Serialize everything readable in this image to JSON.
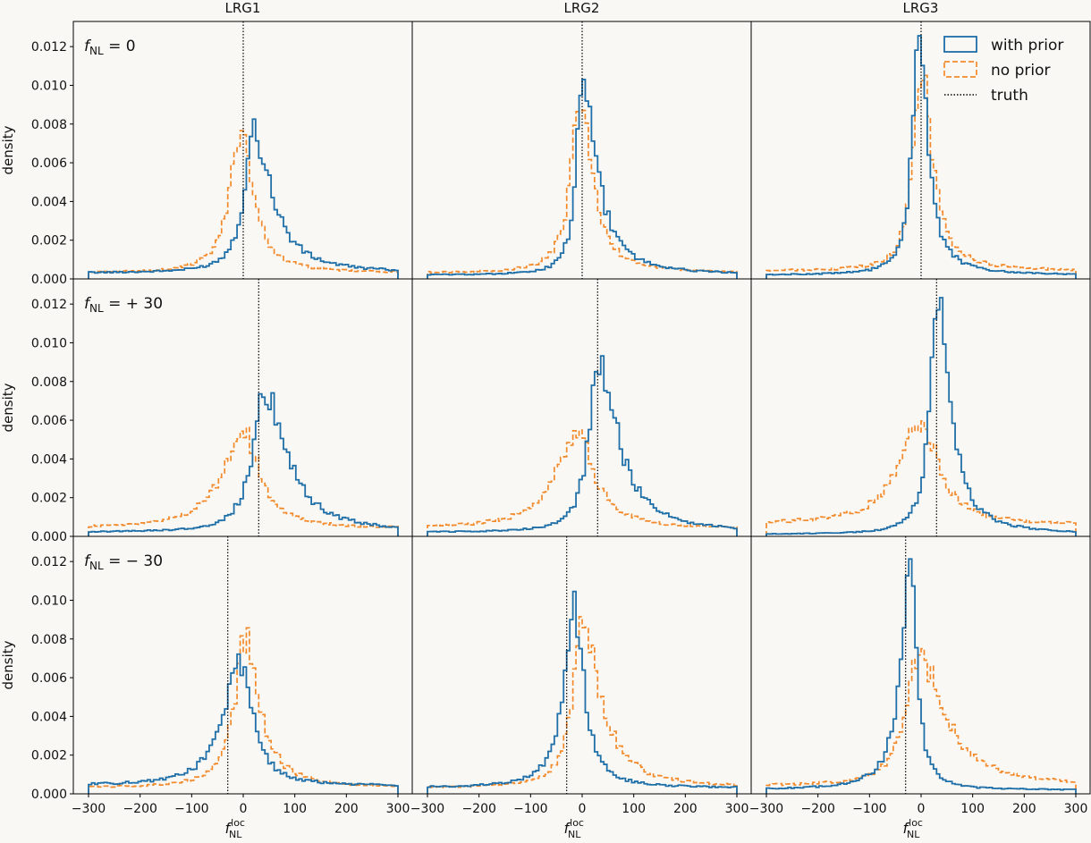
{
  "figure": {
    "columns": [
      "LRG1",
      "LRG2",
      "LRG3"
    ],
    "row_labels": [
      "f_NL = 0",
      "f_NL = +30",
      "f_NL = −30"
    ],
    "row_label_parts": [
      {
        "f": "f",
        "sub": "NL",
        "rest": " = 0"
      },
      {
        "f": "f",
        "sub": "NL",
        "rest": " = + 30"
      },
      {
        "f": "f",
        "sub": "NL",
        "rest": " = − 30"
      }
    ],
    "ylabel": "density",
    "xlabel": {
      "f": "f",
      "sub": "NL",
      "sup": "loc"
    },
    "legend": [
      "with prior",
      "no prior",
      "truth"
    ],
    "colors": {
      "with_prior": "#1f6fa8",
      "no_prior": "#f28a2b",
      "truth": "#000000",
      "background": "#faf8f4"
    },
    "xticks": [
      "−300",
      "−200",
      "−100",
      "0",
      "100",
      "200",
      "300"
    ],
    "yticks": [
      "0.000",
      "0.002",
      "0.004",
      "0.006",
      "0.008",
      "0.010",
      "0.012"
    ]
  },
  "chart_data": {
    "type": "histogram-grid",
    "xlim": [
      -300,
      300
    ],
    "ylim": [
      0,
      0.0133
    ],
    "bins": 100,
    "legend_position": "top-right",
    "grid": false,
    "panels": [
      {
        "row": 0,
        "col": 0,
        "truth": 0,
        "with_prior": {
          "peak": 20,
          "height": 0.0076,
          "left_width": 22,
          "right_width": 42,
          "tail": 0.0003
        },
        "no_prior": {
          "peak": -5,
          "height": 0.0079,
          "left_width": 24,
          "right_width": 28,
          "tail": 0.0003
        }
      },
      {
        "row": 0,
        "col": 1,
        "truth": 0,
        "with_prior": {
          "peak": 0,
          "height": 0.0099,
          "left_width": 14,
          "right_width": 34,
          "tail": 0.0002
        },
        "no_prior": {
          "peak": -5,
          "height": 0.0094,
          "left_width": 20,
          "right_width": 28,
          "tail": 0.0003
        }
      },
      {
        "row": 0,
        "col": 2,
        "truth": 0,
        "with_prior": {
          "peak": -5,
          "height": 0.0131,
          "left_width": 14,
          "right_width": 20,
          "tail": 0.0002
        },
        "no_prior": {
          "peak": 0,
          "height": 0.0107,
          "left_width": 18,
          "right_width": 26,
          "tail": 0.0004
        }
      },
      {
        "row": 1,
        "col": 0,
        "truth": 30,
        "with_prior": {
          "peak": 40,
          "height": 0.0074,
          "left_width": 26,
          "right_width": 52,
          "tail": 0.0002
        },
        "no_prior": {
          "peak": 0,
          "height": 0.0054,
          "left_width": 48,
          "right_width": 38,
          "tail": 0.0004
        }
      },
      {
        "row": 1,
        "col": 1,
        "truth": 30,
        "with_prior": {
          "peak": 30,
          "height": 0.0094,
          "left_width": 20,
          "right_width": 44,
          "tail": 0.0002
        },
        "no_prior": {
          "peak": -10,
          "height": 0.0054,
          "left_width": 48,
          "right_width": 40,
          "tail": 0.0004
        }
      },
      {
        "row": 1,
        "col": 2,
        "truth": 30,
        "with_prior": {
          "peak": 30,
          "height": 0.0122,
          "left_width": 16,
          "right_width": 30,
          "tail": 0.0001
        },
        "no_prior": {
          "peak": 0,
          "height": 0.006,
          "left_width": 50,
          "right_width": 40,
          "tail": 0.0006
        }
      },
      {
        "row": 2,
        "col": 0,
        "truth": -30,
        "with_prior": {
          "peak": -5,
          "height": 0.0068,
          "left_width": 38,
          "right_width": 28,
          "tail": 0.0004
        },
        "no_prior": {
          "peak": 5,
          "height": 0.0081,
          "left_width": 26,
          "right_width": 32,
          "tail": 0.0003
        }
      },
      {
        "row": 2,
        "col": 1,
        "truth": -30,
        "with_prior": {
          "peak": -15,
          "height": 0.0097,
          "left_width": 24,
          "right_width": 22,
          "tail": 0.0003
        },
        "no_prior": {
          "peak": 0,
          "height": 0.0088,
          "left_width": 22,
          "right_width": 42,
          "tail": 0.0003
        }
      },
      {
        "row": 2,
        "col": 2,
        "truth": -30,
        "with_prior": {
          "peak": -20,
          "height": 0.0121,
          "left_width": 22,
          "right_width": 14,
          "tail": 0.0002
        },
        "no_prior": {
          "peak": -5,
          "height": 0.007,
          "left_width": 30,
          "right_width": 60,
          "tail": 0.0004
        }
      }
    ]
  }
}
